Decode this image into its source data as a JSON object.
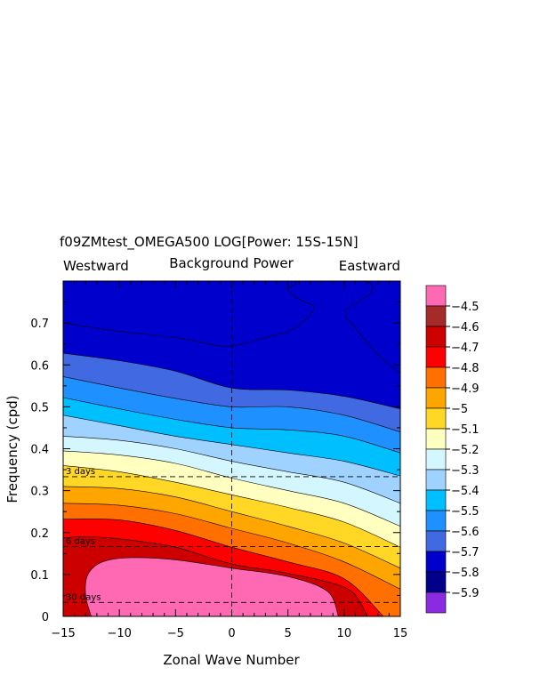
{
  "chart_data": {
    "type": "contour",
    "title": "f09ZMtest_OMEGA500 LOG[Power: 15S-15N]",
    "subtitle": "Background Power",
    "left_label": "Westward",
    "right_label": "Eastward",
    "xlabel": "Zonal Wave Number",
    "ylabel": "Frequency (cpd)",
    "xlim": [
      -15,
      15
    ],
    "ylim": [
      0,
      0.8
    ],
    "xticks": [
      -15,
      -10,
      -5,
      0,
      5,
      10,
      15
    ],
    "xtick_labels": [
      "−15",
      "−10",
      "−5",
      "0",
      "5",
      "10",
      "15"
    ],
    "yticks": [
      0,
      0.1,
      0.2,
      0.3,
      0.4,
      0.5,
      0.6,
      0.7
    ],
    "ytick_labels": [
      "0",
      "0.1",
      "0.2",
      "0.3",
      "0.4",
      "0.5",
      "0.6",
      "0.7"
    ],
    "period_lines": [
      {
        "label": "3 days",
        "freq": 0.3333
      },
      {
        "label": "6 days",
        "freq": 0.1667
      },
      {
        "label": "30 days",
        "freq": 0.0333
      }
    ],
    "colorbar": {
      "labels": [
        "−4.5",
        "−4.6",
        "−4.7",
        "−4.8",
        "−4.9",
        "−5",
        "−5.1",
        "−5.2",
        "−5.3",
        "−5.4",
        "−5.5",
        "−5.6",
        "−5.7",
        "−5.8",
        "−5.9"
      ],
      "colors": [
        "#ff69b4",
        "#a52a2a",
        "#cd0000",
        "#ff0000",
        "#ff7000",
        "#ffa500",
        "#ffd724",
        "#ffffc0",
        "#d4f6ff",
        "#a0d2ff",
        "#00bfff",
        "#1e90ff",
        "#4169e1",
        "#0000cd",
        "#00008b",
        "#8a2be2"
      ]
    },
    "contour_levels": [
      -4.6,
      -4.7,
      -4.8,
      -4.9,
      -5.0,
      -5.1,
      -5.2,
      -5.3,
      -5.4,
      -5.5,
      -5.6,
      -5.7
    ],
    "contours": [
      {
        "level": -4.6,
        "x": [
          -12.5,
          -13,
          -12.8,
          -11.5,
          -9,
          -5,
          0,
          5,
          8.5,
          9.5
        ],
        "y": [
          0,
          0.05,
          0.1,
          0.13,
          0.14,
          0.135,
          0.115,
          0.095,
          0.06,
          0
        ]
      },
      {
        "level": -4.7,
        "x": [
          -15,
          -13,
          -10,
          -5,
          0,
          5,
          10,
          11.5,
          12
        ],
        "y": [
          0.187,
          0.19,
          0.185,
          0.165,
          0.125,
          0.103,
          0.07,
          0.03,
          0
        ]
      },
      {
        "level": -4.8,
        "x": [
          -15,
          -10,
          -5,
          0,
          5,
          10,
          13.5
        ],
        "y": [
          0.232,
          0.23,
          0.205,
          0.165,
          0.13,
          0.09,
          0
        ]
      },
      {
        "level": -4.9,
        "x": [
          -15,
          -10,
          -5,
          0,
          5,
          10,
          15
        ],
        "y": [
          0.27,
          0.265,
          0.245,
          0.21,
          0.175,
          0.13,
          0.065
        ]
      },
      {
        "level": -5.0,
        "x": [
          -15,
          -10,
          -5,
          0,
          5,
          10,
          15
        ],
        "y": [
          0.31,
          0.305,
          0.285,
          0.25,
          0.215,
          0.175,
          0.115
        ]
      },
      {
        "level": -5.1,
        "x": [
          -15,
          -10,
          -5,
          0,
          5,
          10,
          15
        ],
        "y": [
          0.36,
          0.345,
          0.32,
          0.29,
          0.26,
          0.225,
          0.165
        ]
      },
      {
        "level": -5.2,
        "x": [
          -15,
          -10,
          -5,
          0,
          5,
          10,
          15
        ],
        "y": [
          0.395,
          0.385,
          0.365,
          0.33,
          0.3,
          0.27,
          0.215
        ]
      },
      {
        "level": -5.3,
        "x": [
          -15,
          -10,
          -5,
          0,
          5,
          10,
          15
        ],
        "y": [
          0.43,
          0.42,
          0.4,
          0.37,
          0.345,
          0.32,
          0.27
        ]
      },
      {
        "level": -5.4,
        "x": [
          -15,
          -10,
          -5,
          0,
          5,
          10,
          15
        ],
        "y": [
          0.48,
          0.455,
          0.43,
          0.41,
          0.39,
          0.37,
          0.335
        ]
      },
      {
        "level": -5.5,
        "x": [
          -15,
          -10,
          -5,
          0,
          5,
          10,
          15
        ],
        "y": [
          0.522,
          0.495,
          0.47,
          0.45,
          0.445,
          0.43,
          0.39
        ]
      },
      {
        "level": -5.6,
        "x": [
          -15,
          -10,
          -5,
          0,
          5,
          10,
          15
        ],
        "y": [
          0.572,
          0.545,
          0.52,
          0.5,
          0.5,
          0.48,
          0.44
        ]
      },
      {
        "level": -5.7,
        "x": [
          -15,
          -10,
          -5,
          0,
          5,
          10,
          15
        ],
        "y": [
          0.628,
          0.61,
          0.585,
          0.545,
          0.54,
          0.525,
          0.495
        ]
      }
    ],
    "top_region": {
      "level": -5.8,
      "x": [
        -15,
        -10,
        -5,
        -1,
        0,
        1,
        3,
        5,
        6,
        7,
        7.3,
        6.5,
        5.5,
        5,
        5.5,
        5.8,
        5.5
      ],
      "y": [
        0.7,
        0.68,
        0.665,
        0.645,
        0.645,
        0.65,
        0.665,
        0.68,
        0.695,
        0.72,
        0.74,
        0.75,
        0.765,
        0.78,
        0.79,
        0.795,
        0.8
      ]
    },
    "right_region": {
      "level": -5.8,
      "x": [
        11.8,
        12.5,
        12.3,
        11.2,
        10.3,
        10.2,
        10.8,
        12,
        13,
        14,
        15
      ],
      "y": [
        0.8,
        0.79,
        0.77,
        0.75,
        0.735,
        0.715,
        0.695,
        0.655,
        0.625,
        0.6,
        0.58
      ]
    }
  }
}
